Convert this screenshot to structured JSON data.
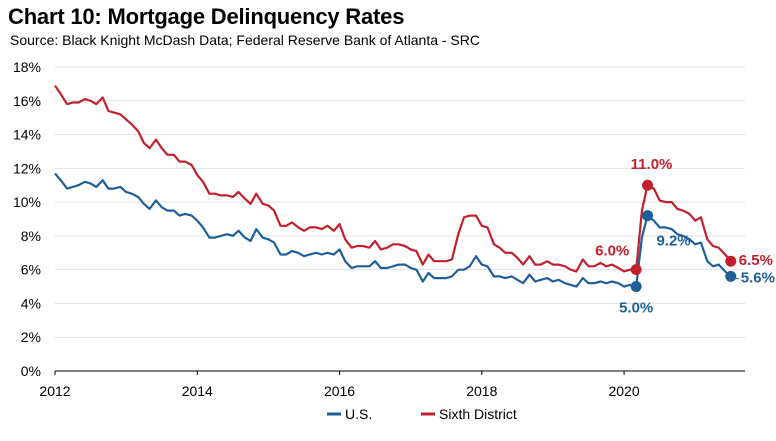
{
  "chart_data": {
    "type": "line",
    "title": "Chart 10: Mortgage Delinquency Rates",
    "subtitle": "Source: Black Knight McDash Data; Federal Reserve Bank of Atlanta - SRC",
    "xlabel": "",
    "ylabel": "",
    "xlim": [
      2012,
      2021.7
    ],
    "ylim": [
      0,
      18
    ],
    "y_ticks": [
      "0%",
      "2%",
      "4%",
      "6%",
      "8%",
      "10%",
      "12%",
      "14%",
      "16%",
      "18%"
    ],
    "x_ticks": [
      "2012",
      "2014",
      "2016",
      "2018",
      "2020"
    ],
    "grid": "horizontal",
    "legend_position": "bottom",
    "series": [
      {
        "name": "U.S.",
        "color": "#1f5f99",
        "points": [
          [
            2012.0,
            11.7
          ],
          [
            2012.08,
            11.3
          ],
          [
            2012.17,
            10.8
          ],
          [
            2012.25,
            10.9
          ],
          [
            2012.33,
            11.0
          ],
          [
            2012.42,
            11.2
          ],
          [
            2012.5,
            11.1
          ],
          [
            2012.58,
            10.9
          ],
          [
            2012.67,
            11.3
          ],
          [
            2012.75,
            10.8
          ],
          [
            2012.83,
            10.8
          ],
          [
            2012.92,
            10.9
          ],
          [
            2013.0,
            10.6
          ],
          [
            2013.08,
            10.5
          ],
          [
            2013.17,
            10.3
          ],
          [
            2013.25,
            9.9
          ],
          [
            2013.33,
            9.6
          ],
          [
            2013.42,
            10.1
          ],
          [
            2013.5,
            9.7
          ],
          [
            2013.58,
            9.5
          ],
          [
            2013.67,
            9.5
          ],
          [
            2013.75,
            9.2
          ],
          [
            2013.83,
            9.3
          ],
          [
            2013.92,
            9.2
          ],
          [
            2014.0,
            8.9
          ],
          [
            2014.08,
            8.5
          ],
          [
            2014.17,
            7.9
          ],
          [
            2014.25,
            7.9
          ],
          [
            2014.33,
            8.0
          ],
          [
            2014.42,
            8.1
          ],
          [
            2014.5,
            8.0
          ],
          [
            2014.58,
            8.3
          ],
          [
            2014.67,
            7.9
          ],
          [
            2014.75,
            7.7
          ],
          [
            2014.83,
            8.4
          ],
          [
            2014.92,
            7.9
          ],
          [
            2015.0,
            7.8
          ],
          [
            2015.08,
            7.6
          ],
          [
            2015.17,
            6.9
          ],
          [
            2015.25,
            6.9
          ],
          [
            2015.33,
            7.1
          ],
          [
            2015.42,
            7.0
          ],
          [
            2015.5,
            6.8
          ],
          [
            2015.58,
            6.9
          ],
          [
            2015.67,
            7.0
          ],
          [
            2015.75,
            6.9
          ],
          [
            2015.83,
            7.0
          ],
          [
            2015.92,
            6.9
          ],
          [
            2016.0,
            7.2
          ],
          [
            2016.08,
            6.5
          ],
          [
            2016.17,
            6.1
          ],
          [
            2016.25,
            6.2
          ],
          [
            2016.33,
            6.2
          ],
          [
            2016.42,
            6.2
          ],
          [
            2016.5,
            6.5
          ],
          [
            2016.58,
            6.1
          ],
          [
            2016.67,
            6.1
          ],
          [
            2016.75,
            6.2
          ],
          [
            2016.83,
            6.3
          ],
          [
            2016.92,
            6.3
          ],
          [
            2017.0,
            6.1
          ],
          [
            2017.08,
            6.0
          ],
          [
            2017.17,
            5.3
          ],
          [
            2017.25,
            5.8
          ],
          [
            2017.33,
            5.5
          ],
          [
            2017.42,
            5.5
          ],
          [
            2017.5,
            5.5
          ],
          [
            2017.58,
            5.6
          ],
          [
            2017.67,
            6.0
          ],
          [
            2017.75,
            6.0
          ],
          [
            2017.83,
            6.2
          ],
          [
            2017.92,
            6.8
          ],
          [
            2018.0,
            6.3
          ],
          [
            2018.08,
            6.2
          ],
          [
            2018.17,
            5.6
          ],
          [
            2018.25,
            5.6
          ],
          [
            2018.33,
            5.5
          ],
          [
            2018.42,
            5.6
          ],
          [
            2018.5,
            5.4
          ],
          [
            2018.58,
            5.2
          ],
          [
            2018.67,
            5.7
          ],
          [
            2018.75,
            5.3
          ],
          [
            2018.83,
            5.4
          ],
          [
            2018.92,
            5.5
          ],
          [
            2019.0,
            5.3
          ],
          [
            2019.08,
            5.4
          ],
          [
            2019.17,
            5.2
          ],
          [
            2019.25,
            5.1
          ],
          [
            2019.33,
            5.0
          ],
          [
            2019.42,
            5.5
          ],
          [
            2019.5,
            5.2
          ],
          [
            2019.58,
            5.2
          ],
          [
            2019.67,
            5.3
          ],
          [
            2019.75,
            5.2
          ],
          [
            2019.83,
            5.3
          ],
          [
            2019.92,
            5.2
          ],
          [
            2020.0,
            5.0
          ],
          [
            2020.08,
            5.1
          ],
          [
            2020.17,
            5.0
          ],
          [
            2020.25,
            7.9
          ],
          [
            2020.33,
            9.2
          ],
          [
            2020.42,
            8.9
          ],
          [
            2020.5,
            8.5
          ],
          [
            2020.58,
            8.5
          ],
          [
            2020.67,
            8.4
          ],
          [
            2020.75,
            8.1
          ],
          [
            2020.83,
            8.0
          ],
          [
            2020.92,
            7.8
          ],
          [
            2021.0,
            7.5
          ],
          [
            2021.08,
            7.6
          ],
          [
            2021.17,
            6.5
          ],
          [
            2021.25,
            6.2
          ],
          [
            2021.33,
            6.3
          ],
          [
            2021.42,
            5.9
          ],
          [
            2021.5,
            5.6
          ]
        ],
        "annotations": [
          {
            "x": 2020.17,
            "y": 5.0,
            "label": "5.0%"
          },
          {
            "x": 2020.33,
            "y": 9.2,
            "label": "9.2%"
          },
          {
            "x": 2021.5,
            "y": 5.6,
            "label": "5.6%"
          }
        ]
      },
      {
        "name": "Sixth District",
        "color": "#c0212d",
        "points": [
          [
            2012.0,
            16.9
          ],
          [
            2012.08,
            16.4
          ],
          [
            2012.17,
            15.8
          ],
          [
            2012.25,
            15.9
          ],
          [
            2012.33,
            15.9
          ],
          [
            2012.42,
            16.1
          ],
          [
            2012.5,
            16.0
          ],
          [
            2012.58,
            15.8
          ],
          [
            2012.67,
            16.2
          ],
          [
            2012.75,
            15.4
          ],
          [
            2012.83,
            15.3
          ],
          [
            2012.92,
            15.2
          ],
          [
            2013.0,
            14.9
          ],
          [
            2013.08,
            14.6
          ],
          [
            2013.17,
            14.2
          ],
          [
            2013.25,
            13.5
          ],
          [
            2013.33,
            13.2
          ],
          [
            2013.42,
            13.7
          ],
          [
            2013.5,
            13.2
          ],
          [
            2013.58,
            12.8
          ],
          [
            2013.67,
            12.8
          ],
          [
            2013.75,
            12.4
          ],
          [
            2013.83,
            12.4
          ],
          [
            2013.92,
            12.2
          ],
          [
            2014.0,
            11.6
          ],
          [
            2014.08,
            11.2
          ],
          [
            2014.17,
            10.5
          ],
          [
            2014.25,
            10.5
          ],
          [
            2014.33,
            10.4
          ],
          [
            2014.42,
            10.4
          ],
          [
            2014.5,
            10.3
          ],
          [
            2014.58,
            10.6
          ],
          [
            2014.67,
            10.2
          ],
          [
            2014.75,
            9.9
          ],
          [
            2014.83,
            10.5
          ],
          [
            2014.92,
            9.9
          ],
          [
            2015.0,
            9.8
          ],
          [
            2015.08,
            9.5
          ],
          [
            2015.17,
            8.6
          ],
          [
            2015.25,
            8.6
          ],
          [
            2015.33,
            8.8
          ],
          [
            2015.42,
            8.5
          ],
          [
            2015.5,
            8.3
          ],
          [
            2015.58,
            8.5
          ],
          [
            2015.67,
            8.5
          ],
          [
            2015.75,
            8.4
          ],
          [
            2015.83,
            8.6
          ],
          [
            2015.92,
            8.3
          ],
          [
            2016.0,
            8.7
          ],
          [
            2016.08,
            7.8
          ],
          [
            2016.17,
            7.3
          ],
          [
            2016.25,
            7.4
          ],
          [
            2016.33,
            7.4
          ],
          [
            2016.42,
            7.3
          ],
          [
            2016.5,
            7.7
          ],
          [
            2016.58,
            7.2
          ],
          [
            2016.67,
            7.3
          ],
          [
            2016.75,
            7.5
          ],
          [
            2016.83,
            7.5
          ],
          [
            2016.92,
            7.4
          ],
          [
            2017.0,
            7.2
          ],
          [
            2017.08,
            7.1
          ],
          [
            2017.17,
            6.3
          ],
          [
            2017.25,
            6.9
          ],
          [
            2017.33,
            6.5
          ],
          [
            2017.42,
            6.5
          ],
          [
            2017.5,
            6.5
          ],
          [
            2017.58,
            6.6
          ],
          [
            2017.67,
            8.1
          ],
          [
            2017.75,
            9.1
          ],
          [
            2017.83,
            9.2
          ],
          [
            2017.92,
            9.2
          ],
          [
            2018.0,
            8.6
          ],
          [
            2018.08,
            8.5
          ],
          [
            2018.17,
            7.5
          ],
          [
            2018.25,
            7.3
          ],
          [
            2018.33,
            7.0
          ],
          [
            2018.42,
            7.0
          ],
          [
            2018.5,
            6.7
          ],
          [
            2018.58,
            6.3
          ],
          [
            2018.67,
            6.8
          ],
          [
            2018.75,
            6.3
          ],
          [
            2018.83,
            6.3
          ],
          [
            2018.92,
            6.5
          ],
          [
            2019.0,
            6.3
          ],
          [
            2019.08,
            6.3
          ],
          [
            2019.17,
            6.2
          ],
          [
            2019.25,
            6.0
          ],
          [
            2019.33,
            5.9
          ],
          [
            2019.42,
            6.6
          ],
          [
            2019.5,
            6.2
          ],
          [
            2019.58,
            6.2
          ],
          [
            2019.67,
            6.4
          ],
          [
            2019.75,
            6.2
          ],
          [
            2019.83,
            6.3
          ],
          [
            2019.92,
            6.1
          ],
          [
            2020.0,
            5.9
          ],
          [
            2020.08,
            6.0
          ],
          [
            2020.17,
            6.0
          ],
          [
            2020.25,
            9.5
          ],
          [
            2020.33,
            11.0
          ],
          [
            2020.42,
            10.8
          ],
          [
            2020.5,
            10.1
          ],
          [
            2020.58,
            10.0
          ],
          [
            2020.67,
            10.0
          ],
          [
            2020.75,
            9.6
          ],
          [
            2020.83,
            9.5
          ],
          [
            2020.92,
            9.3
          ],
          [
            2021.0,
            8.9
          ],
          [
            2021.08,
            9.1
          ],
          [
            2021.17,
            7.8
          ],
          [
            2021.25,
            7.4
          ],
          [
            2021.33,
            7.3
          ],
          [
            2021.42,
            6.9
          ],
          [
            2021.5,
            6.5
          ]
        ],
        "annotations": [
          {
            "x": 2020.17,
            "y": 6.0,
            "label": "6.0%"
          },
          {
            "x": 2020.33,
            "y": 11.0,
            "label": "11.0%"
          },
          {
            "x": 2021.5,
            "y": 6.5,
            "label": "6.5%"
          }
        ]
      }
    ]
  }
}
